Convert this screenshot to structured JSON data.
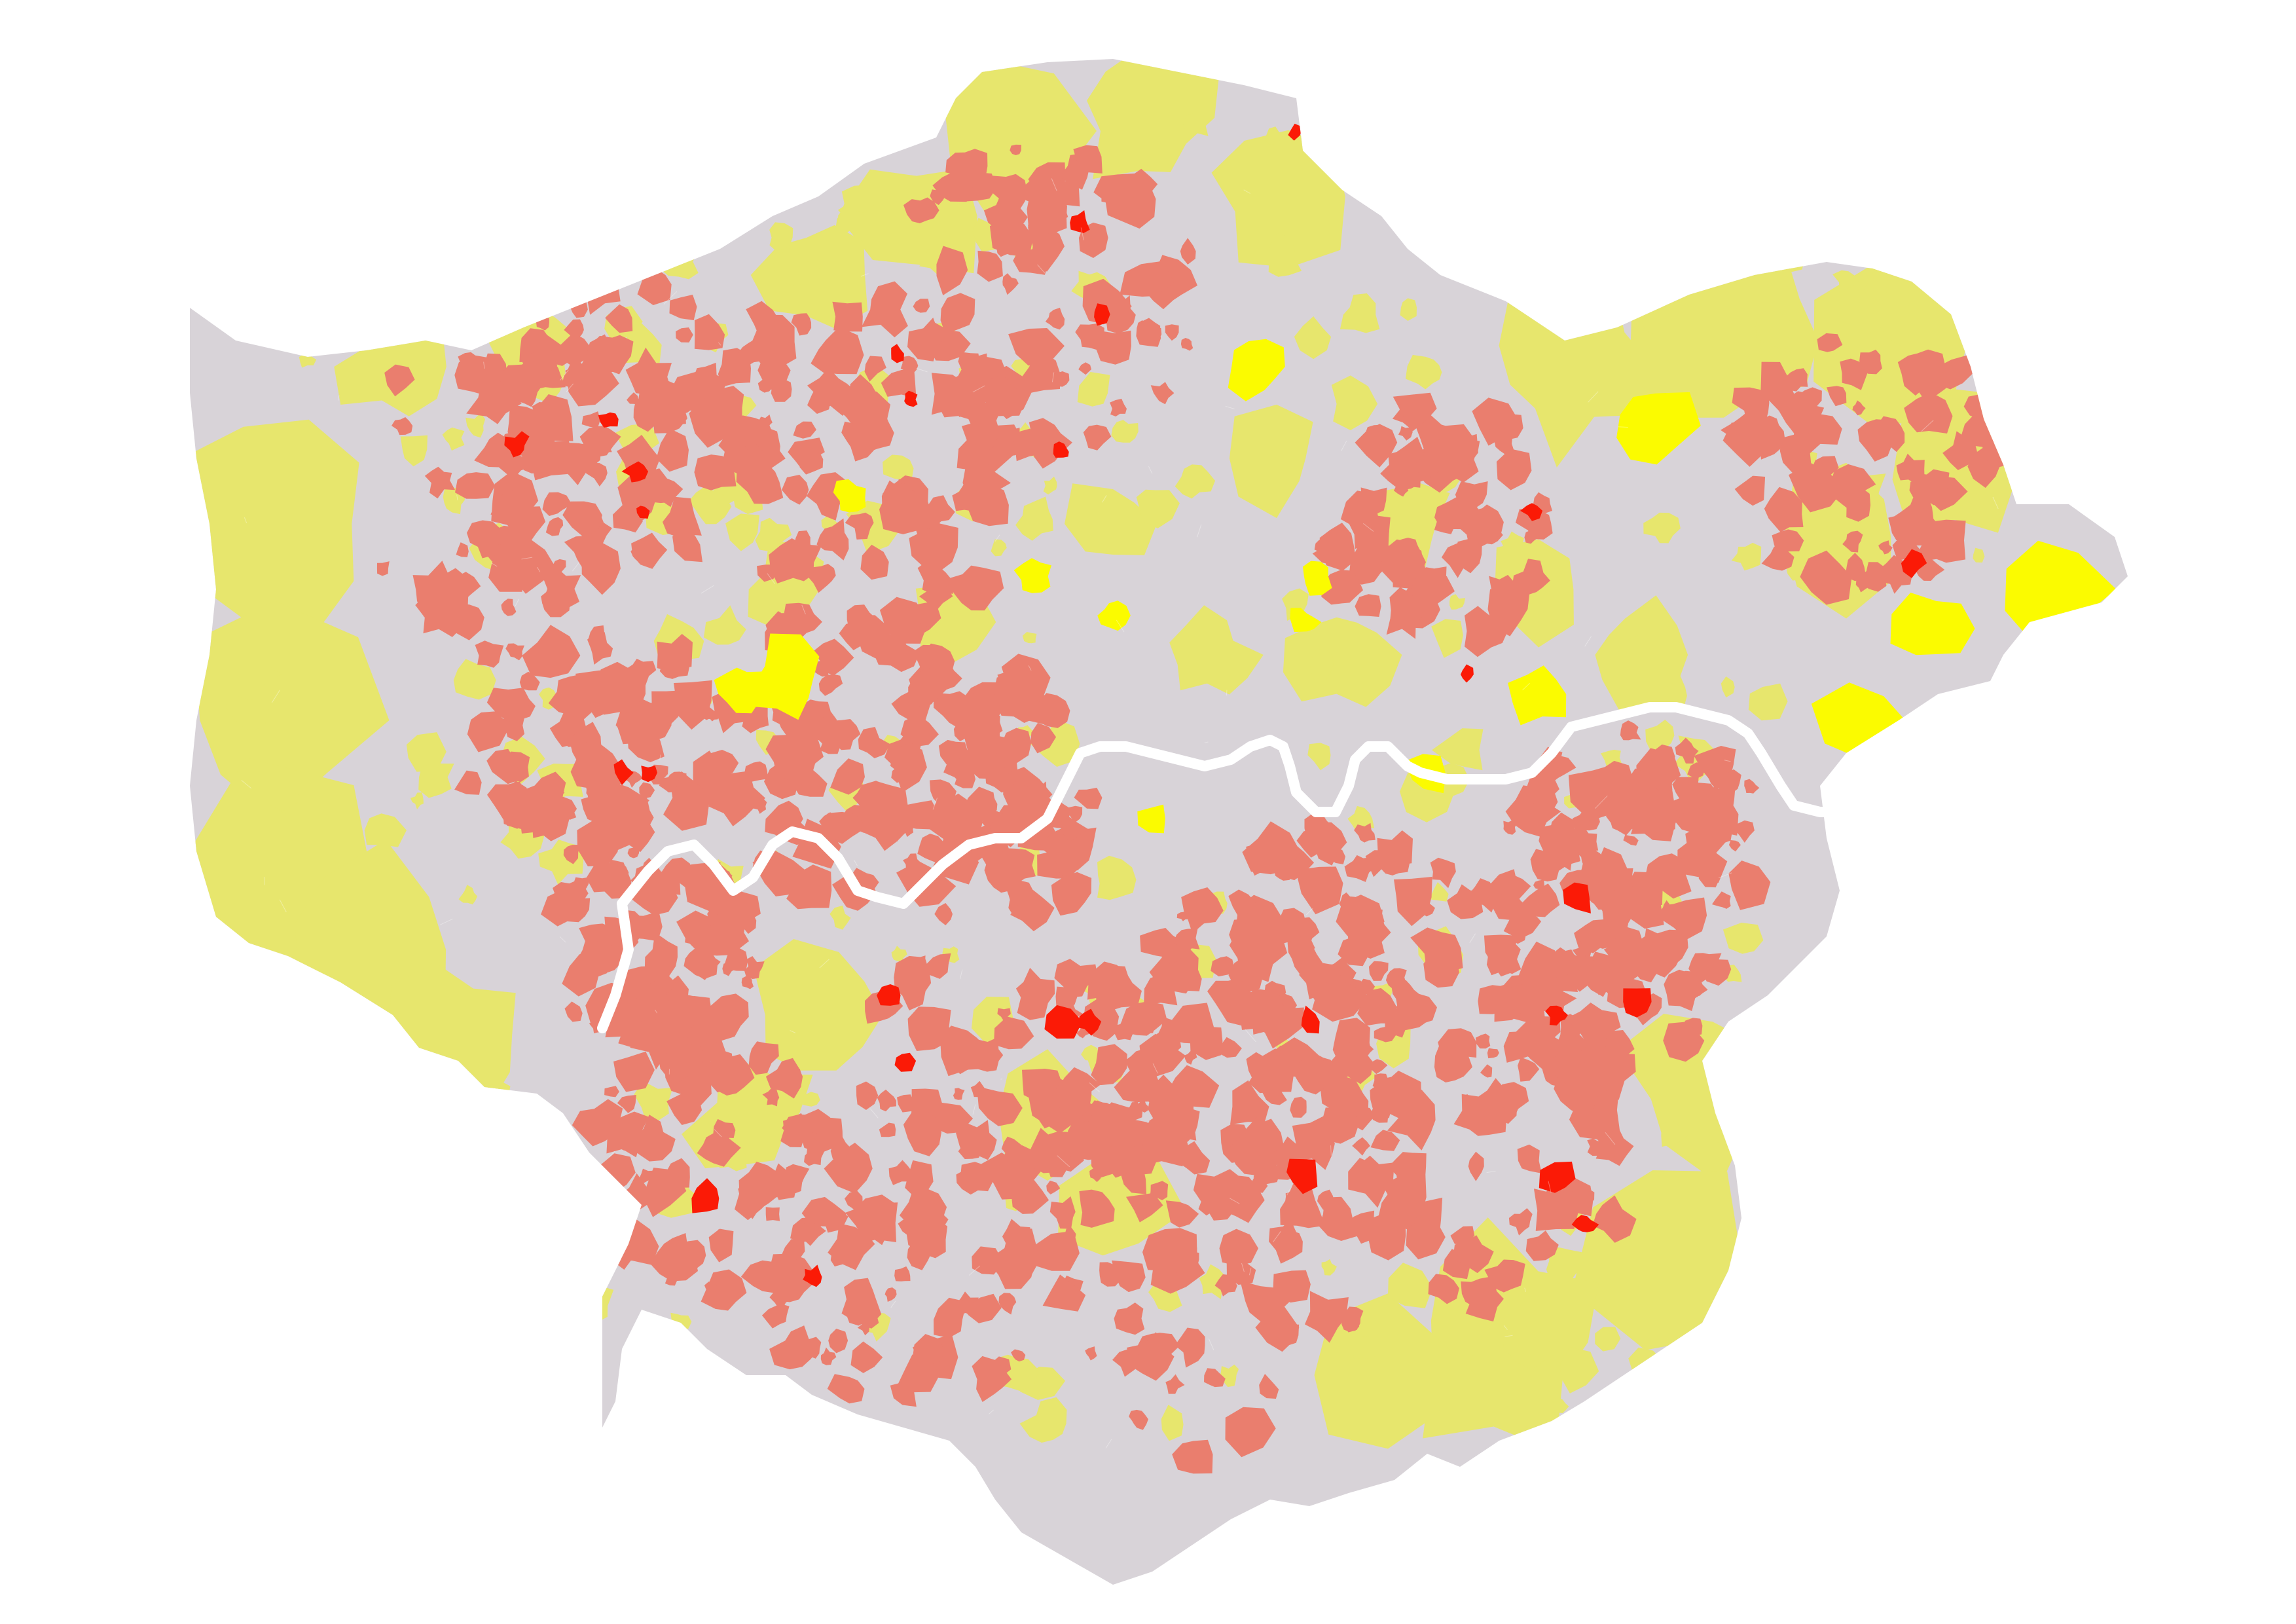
{
  "map": {
    "categories": [
      {
        "key": "grey",
        "color": "#d8d3d8"
      },
      {
        "key": "pale_yellow",
        "color": "#e7e66d"
      },
      {
        "key": "bright_yellow",
        "color": "#fbfb00"
      },
      {
        "key": "salmon",
        "color": "#ea7e6e"
      },
      {
        "key": "red",
        "color": "#fb1a06"
      }
    ],
    "river_color": "#ffffff",
    "background_color": "#ffffff"
  }
}
